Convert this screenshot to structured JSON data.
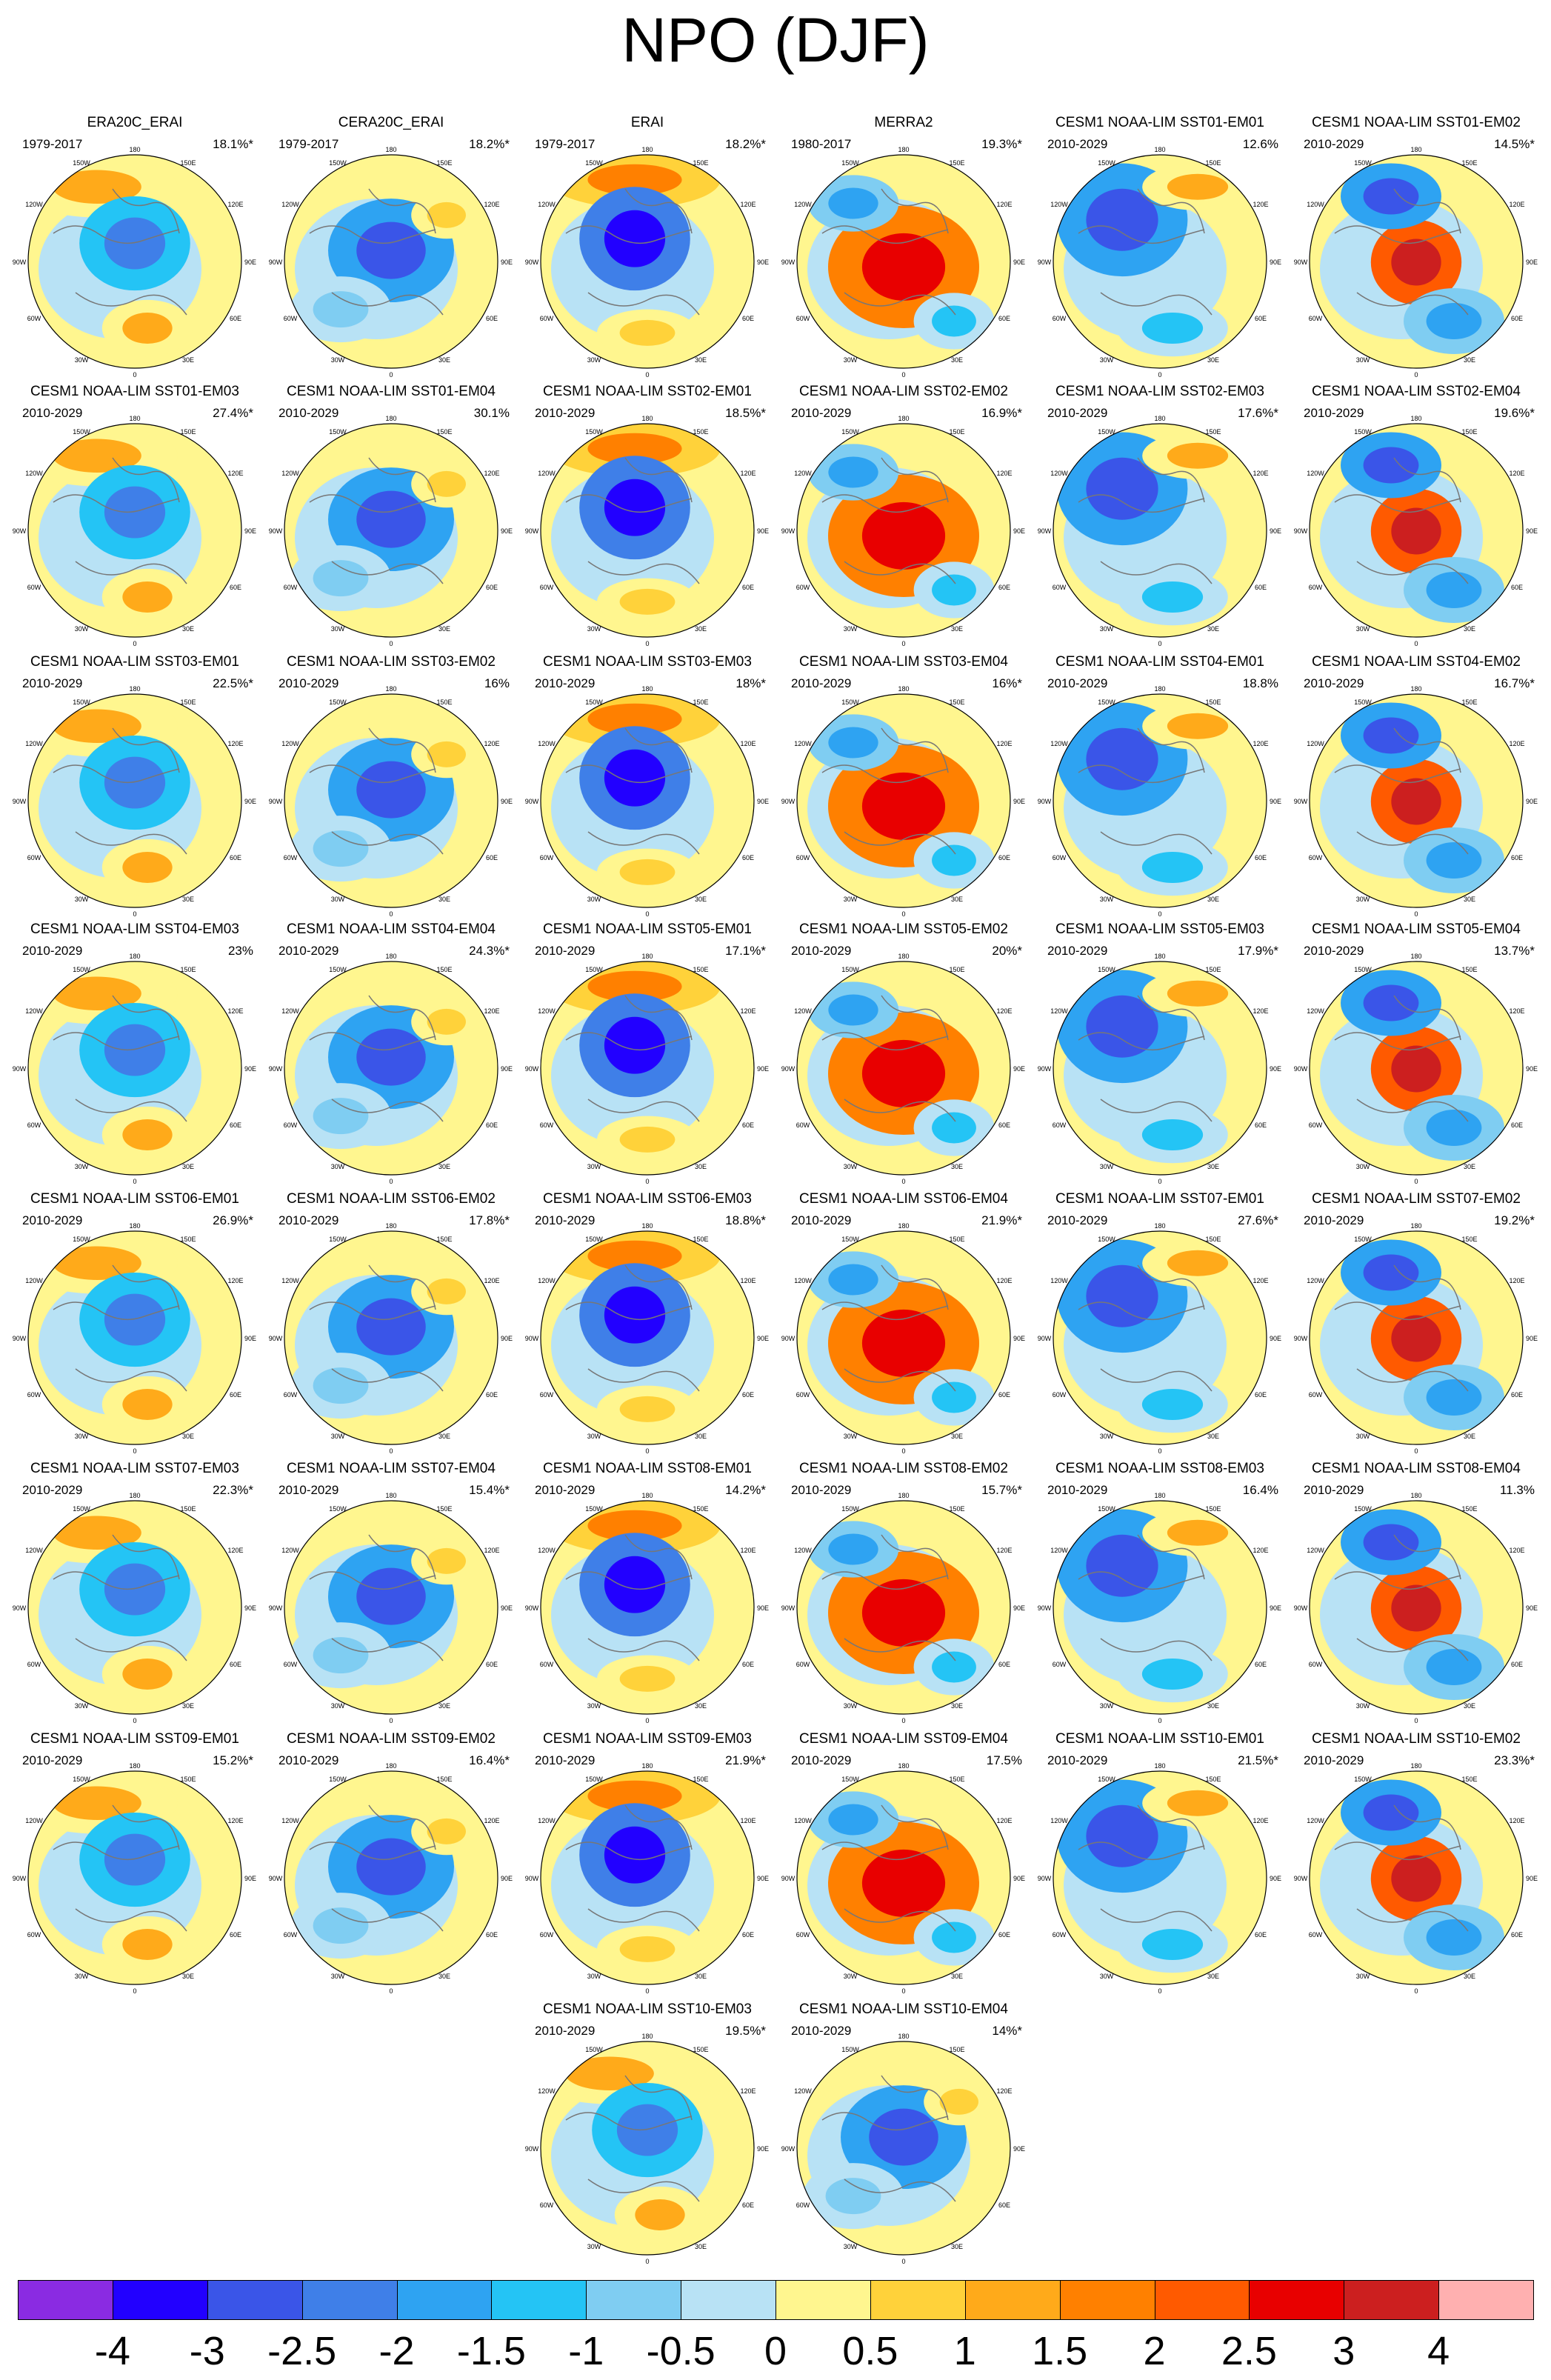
{
  "title": "NPO (DJF)",
  "map_labels": {
    "lon": [
      "180",
      "150W",
      "150E",
      "120W",
      "120E",
      "90W",
      "90E",
      "60W",
      "60E",
      "30W",
      "30E",
      "0"
    ]
  },
  "panels": [
    {
      "title": "ERA20C_ERAI",
      "period": "1979-2017",
      "pct": "18.1%*"
    },
    {
      "title": "CERA20C_ERAI",
      "period": "1979-2017",
      "pct": "18.2%*"
    },
    {
      "title": "ERAI",
      "period": "1979-2017",
      "pct": "18.2%*"
    },
    {
      "title": "MERRA2",
      "period": "1980-2017",
      "pct": "19.3%*"
    },
    {
      "title": "CESM1 NOAA-LIM SST01-EM01",
      "period": "2010-2029",
      "pct": "12.6%"
    },
    {
      "title": "CESM1 NOAA-LIM SST01-EM02",
      "period": "2010-2029",
      "pct": "14.5%*"
    },
    {
      "title": "CESM1 NOAA-LIM SST01-EM03",
      "period": "2010-2029",
      "pct": "27.4%*"
    },
    {
      "title": "CESM1 NOAA-LIM SST01-EM04",
      "period": "2010-2029",
      "pct": "30.1%"
    },
    {
      "title": "CESM1 NOAA-LIM SST02-EM01",
      "period": "2010-2029",
      "pct": "18.5%*"
    },
    {
      "title": "CESM1 NOAA-LIM SST02-EM02",
      "period": "2010-2029",
      "pct": "16.9%*"
    },
    {
      "title": "CESM1 NOAA-LIM SST02-EM03",
      "period": "2010-2029",
      "pct": "17.6%*"
    },
    {
      "title": "CESM1 NOAA-LIM SST02-EM04",
      "period": "2010-2029",
      "pct": "19.6%*"
    },
    {
      "title": "CESM1 NOAA-LIM SST03-EM01",
      "period": "2010-2029",
      "pct": "22.5%*"
    },
    {
      "title": "CESM1 NOAA-LIM SST03-EM02",
      "period": "2010-2029",
      "pct": "16%"
    },
    {
      "title": "CESM1 NOAA-LIM SST03-EM03",
      "period": "2010-2029",
      "pct": "18%*"
    },
    {
      "title": "CESM1 NOAA-LIM SST03-EM04",
      "period": "2010-2029",
      "pct": "16%*"
    },
    {
      "title": "CESM1 NOAA-LIM SST04-EM01",
      "period": "2010-2029",
      "pct": "18.8%"
    },
    {
      "title": "CESM1 NOAA-LIM SST04-EM02",
      "period": "2010-2029",
      "pct": "16.7%*"
    },
    {
      "title": "CESM1 NOAA-LIM SST04-EM03",
      "period": "2010-2029",
      "pct": "23%"
    },
    {
      "title": "CESM1 NOAA-LIM SST04-EM04",
      "period": "2010-2029",
      "pct": "24.3%*"
    },
    {
      "title": "CESM1 NOAA-LIM SST05-EM01",
      "period": "2010-2029",
      "pct": "17.1%*"
    },
    {
      "title": "CESM1 NOAA-LIM SST05-EM02",
      "period": "2010-2029",
      "pct": "20%*"
    },
    {
      "title": "CESM1 NOAA-LIM SST05-EM03",
      "period": "2010-2029",
      "pct": "17.9%*"
    },
    {
      "title": "CESM1 NOAA-LIM SST05-EM04",
      "period": "2010-2029",
      "pct": "13.7%*"
    },
    {
      "title": "CESM1 NOAA-LIM SST06-EM01",
      "period": "2010-2029",
      "pct": "26.9%*"
    },
    {
      "title": "CESM1 NOAA-LIM SST06-EM02",
      "period": "2010-2029",
      "pct": "17.8%*"
    },
    {
      "title": "CESM1 NOAA-LIM SST06-EM03",
      "period": "2010-2029",
      "pct": "18.8%*"
    },
    {
      "title": "CESM1 NOAA-LIM SST06-EM04",
      "period": "2010-2029",
      "pct": "21.9%*"
    },
    {
      "title": "CESM1 NOAA-LIM SST07-EM01",
      "period": "2010-2029",
      "pct": "27.6%*"
    },
    {
      "title": "CESM1 NOAA-LIM SST07-EM02",
      "period": "2010-2029",
      "pct": "19.2%*"
    },
    {
      "title": "CESM1 NOAA-LIM SST07-EM03",
      "period": "2010-2029",
      "pct": "22.3%*"
    },
    {
      "title": "CESM1 NOAA-LIM SST07-EM04",
      "period": "2010-2029",
      "pct": "15.4%*"
    },
    {
      "title": "CESM1 NOAA-LIM SST08-EM01",
      "period": "2010-2029",
      "pct": "14.2%*"
    },
    {
      "title": "CESM1 NOAA-LIM SST08-EM02",
      "period": "2010-2029",
      "pct": "15.7%*"
    },
    {
      "title": "CESM1 NOAA-LIM SST08-EM03",
      "period": "2010-2029",
      "pct": "16.4%"
    },
    {
      "title": "CESM1 NOAA-LIM SST08-EM04",
      "period": "2010-2029",
      "pct": "11.3%"
    },
    {
      "title": "CESM1 NOAA-LIM SST09-EM01",
      "period": "2010-2029",
      "pct": "15.2%*"
    },
    {
      "title": "CESM1 NOAA-LIM SST09-EM02",
      "period": "2010-2029",
      "pct": "16.4%*"
    },
    {
      "title": "CESM1 NOAA-LIM SST09-EM03",
      "period": "2010-2029",
      "pct": "21.9%*"
    },
    {
      "title": "CESM1 NOAA-LIM SST09-EM04",
      "period": "2010-2029",
      "pct": "17.5%"
    },
    {
      "title": "CESM1 NOAA-LIM SST10-EM01",
      "period": "2010-2029",
      "pct": "21.5%*"
    },
    {
      "title": "CESM1 NOAA-LIM SST10-EM02",
      "period": "2010-2029",
      "pct": "23.3%*"
    },
    {
      "title": "CESM1 NOAA-LIM SST10-EM03",
      "period": "2010-2029",
      "pct": "19.5%*"
    },
    {
      "title": "CESM1 NOAA-LIM SST10-EM04",
      "period": "2010-2029",
      "pct": "14%*"
    }
  ],
  "colorbar": {
    "colors": [
      "#8a2be2",
      "#2200ff",
      "#3a55e8",
      "#3f7fe8",
      "#2ea3f2",
      "#24c4f5",
      "#7fcdf2",
      "#b8e2f5",
      "#fff68f",
      "#ffd23a",
      "#ffaa1a",
      "#ff8000",
      "#ff5a00",
      "#e80000",
      "#cc1f1f",
      "#ffb0b0"
    ],
    "labels": [
      "-4",
      "-3",
      "-2.5",
      "-2",
      "-1.5",
      "-1",
      "-0.5",
      "0",
      "0.5",
      "1",
      "1.5",
      "2",
      "2.5",
      "3",
      "4"
    ]
  }
}
